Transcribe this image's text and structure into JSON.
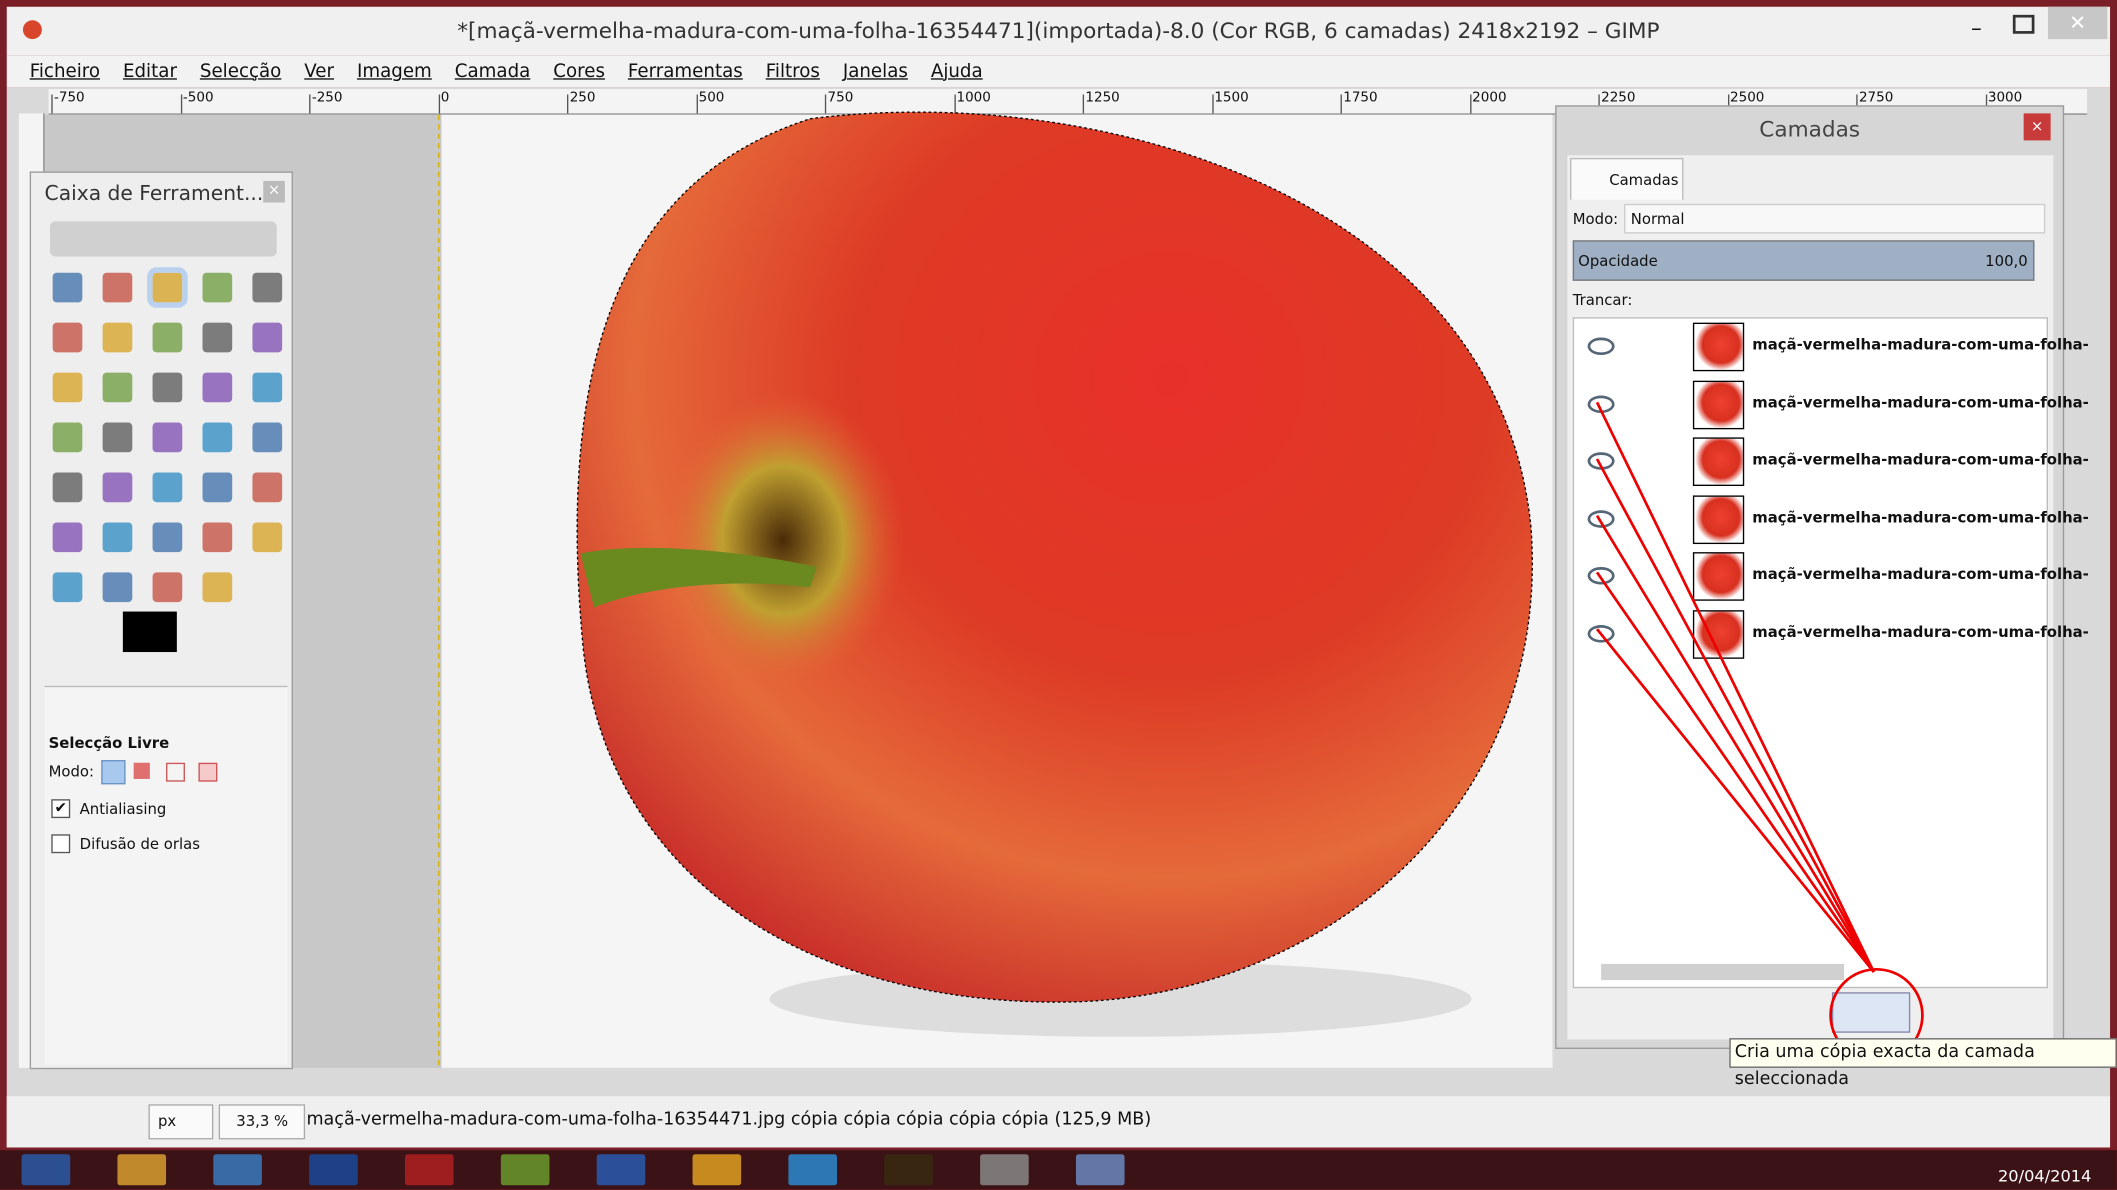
{
  "window": {
    "title": "*[maçã-vermelha-madura-com-uma-folha-16354471](importada)-8.0 (Cor RGB, 6 camadas) 2418x2192 – GIMP"
  },
  "menu": [
    "Ficheiro",
    "Editar",
    "Selecção",
    "Ver",
    "Imagem",
    "Camada",
    "Cores",
    "Ferramentas",
    "Filtros",
    "Janelas",
    "Ajuda"
  ],
  "ruler": [
    "-750",
    "-500",
    "-250",
    "0",
    "250",
    "500",
    "750",
    "1000",
    "1250",
    "1500",
    "1750",
    "2000",
    "2250",
    "2500",
    "2750",
    "3000"
  ],
  "toolbox": {
    "title": "Caixa de Ferrament...",
    "options_title": "Selecção Livre",
    "mode_label": "Modo:",
    "antialiasing": "Antialiasing",
    "feather": "Difusão de orlas"
  },
  "layers": {
    "title": "Camadas",
    "tab": "Camadas",
    "mode_label": "Modo:",
    "mode": "Normal",
    "opacity_label": "Opacidade",
    "opacity": "100,0",
    "lock_label": "Trancar:",
    "items": [
      "maçã-vermelha-madura-com-uma-folha-",
      "maçã-vermelha-madura-com-uma-folha-",
      "maçã-vermelha-madura-com-uma-folha-",
      "maçã-vermelha-madura-com-uma-folha-",
      "maçã-vermelha-madura-com-uma-folha-",
      "maçã-vermelha-madura-com-uma-folha-"
    ]
  },
  "tooltip": "Cria uma cópia exacta da camada seleccionada",
  "status": {
    "unit": "px",
    "zoom": "33,3 %",
    "message": "maçã-vermelha-madura-com-uma-folha-16354471.jpg cópia cópia cópia cópia cópia (125,9 MB)"
  },
  "taskbar": {
    "date": "20/04/2014"
  }
}
